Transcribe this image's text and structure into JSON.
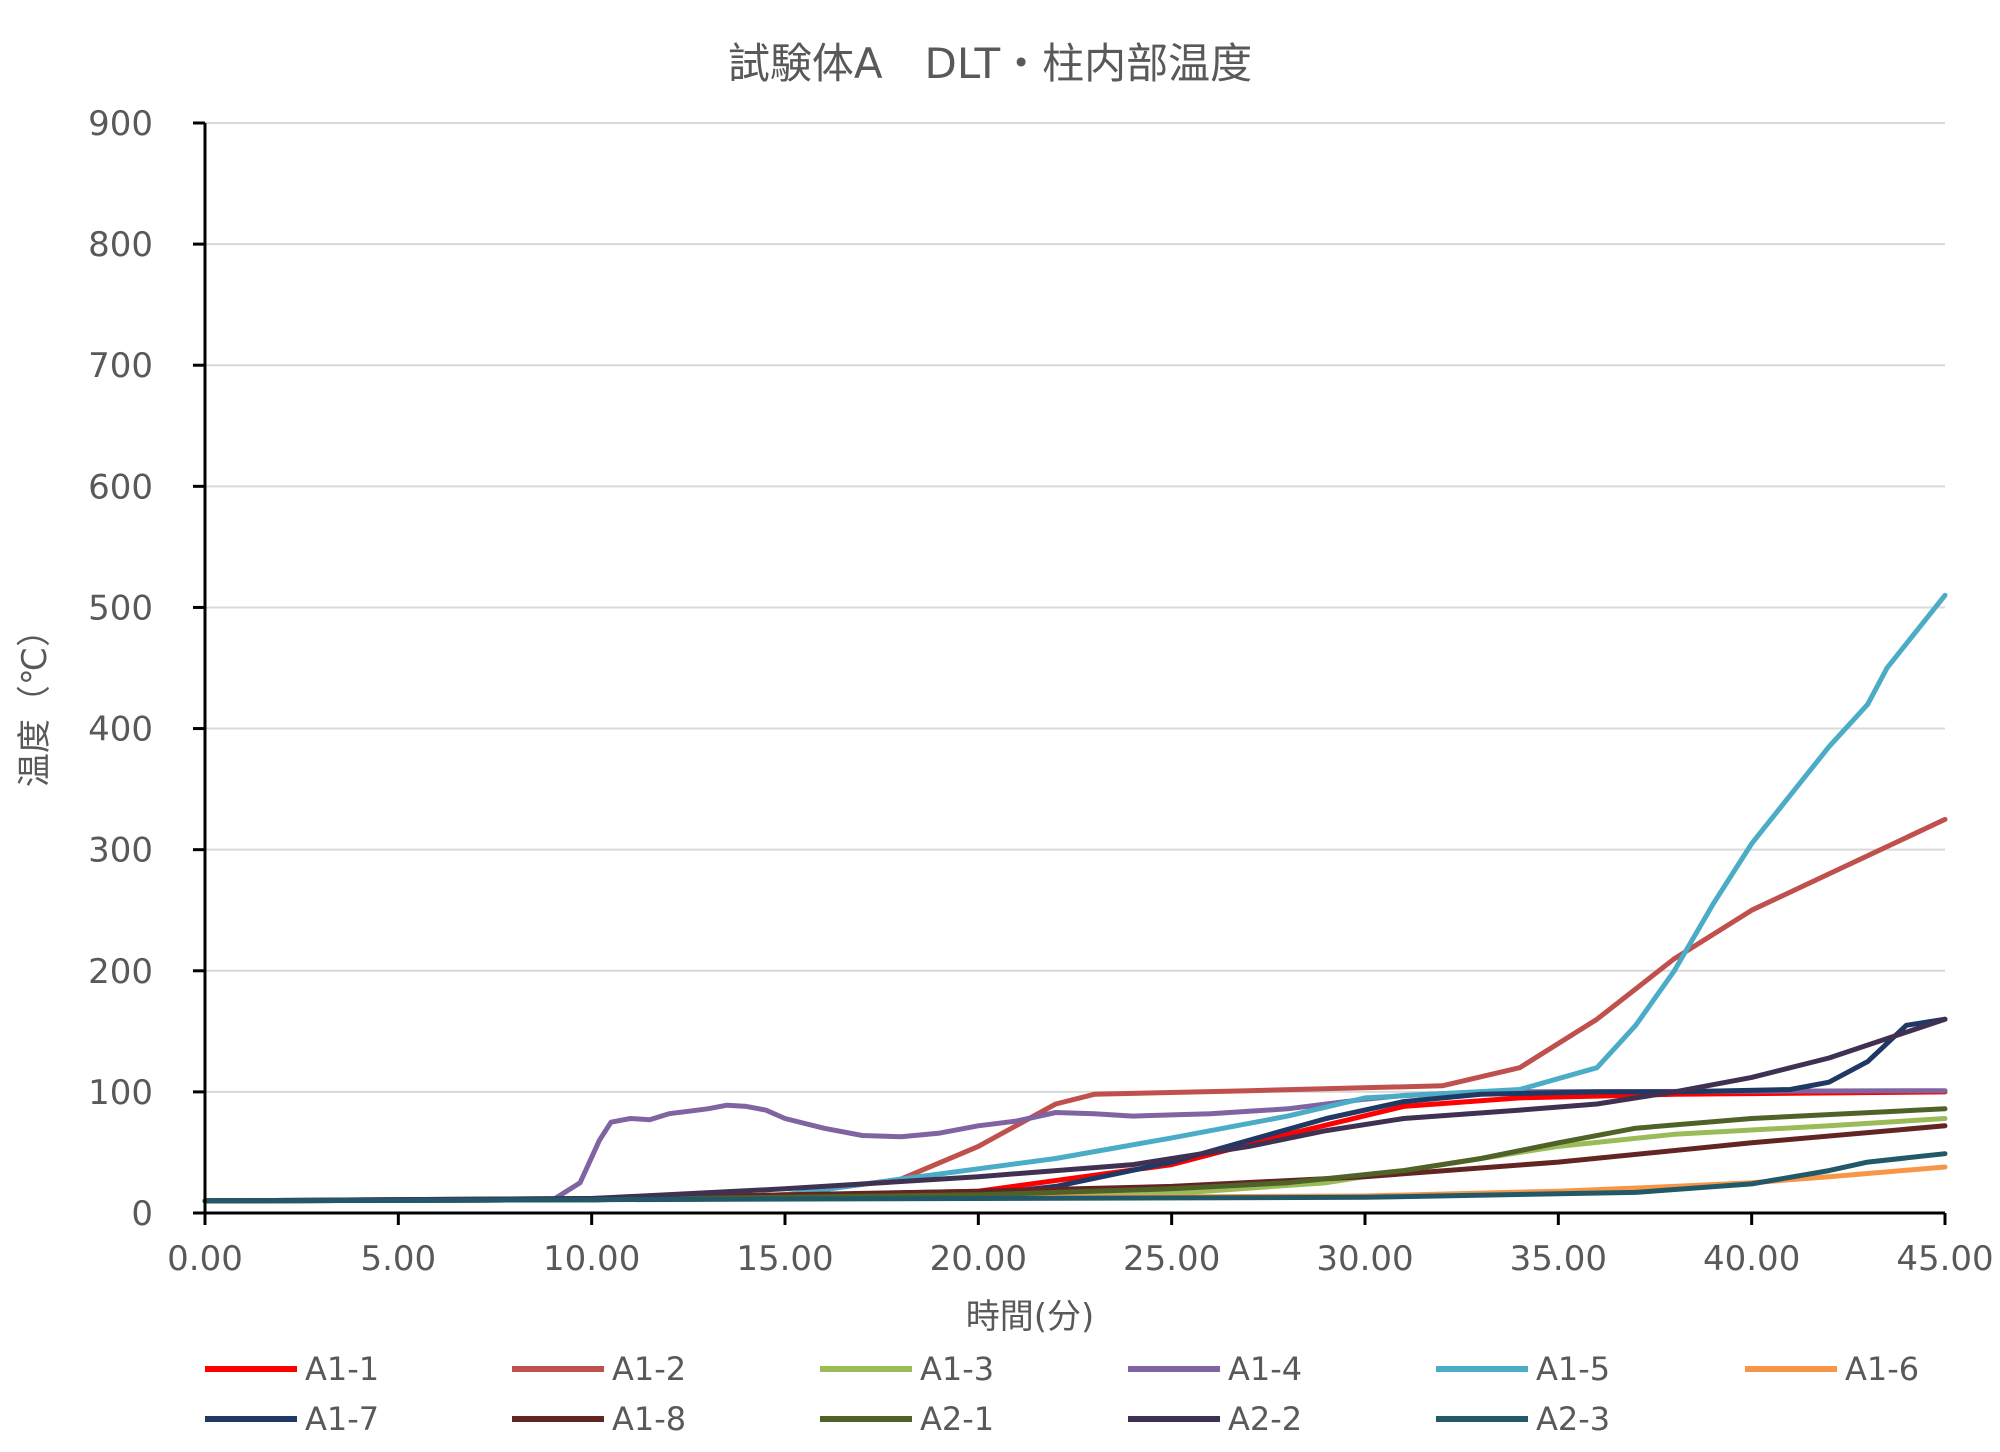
{
  "chart_data": {
    "type": "line",
    "title": "試験体A　DLT・柱内部温度",
    "xlabel": "時間(分)",
    "ylabel": "温度（℃）",
    "xlim": [
      0,
      45
    ],
    "ylim": [
      0,
      900
    ],
    "x_ticks": [
      "0.00",
      "5.00",
      "10.00",
      "15.00",
      "20.00",
      "25.00",
      "30.00",
      "35.00",
      "40.00",
      "45.00"
    ],
    "y_ticks": [
      "0",
      "100",
      "200",
      "300",
      "400",
      "500",
      "600",
      "700",
      "800",
      "900"
    ],
    "grid": true,
    "legend_position": "bottom",
    "series": [
      {
        "name": "A1-1",
        "color": "#ff0000",
        "points": [
          [
            0,
            10
          ],
          [
            10,
            11
          ],
          [
            20,
            18
          ],
          [
            25,
            40
          ],
          [
            28,
            65
          ],
          [
            31,
            88
          ],
          [
            34,
            95
          ],
          [
            38,
            98
          ],
          [
            45,
            100
          ]
        ]
      },
      {
        "name": "A1-2",
        "color": "#c0504d",
        "points": [
          [
            0,
            10
          ],
          [
            10,
            11
          ],
          [
            15,
            15
          ],
          [
            18,
            28
          ],
          [
            20,
            55
          ],
          [
            22,
            90
          ],
          [
            23,
            98
          ],
          [
            27,
            101
          ],
          [
            32,
            105
          ],
          [
            34,
            120
          ],
          [
            36,
            160
          ],
          [
            38,
            210
          ],
          [
            40,
            250
          ],
          [
            42,
            280
          ],
          [
            45,
            325
          ]
        ]
      },
      {
        "name": "A1-3",
        "color": "#9bbb59",
        "points": [
          [
            0,
            10
          ],
          [
            10,
            11
          ],
          [
            25,
            16
          ],
          [
            29,
            25
          ],
          [
            32,
            40
          ],
          [
            35,
            55
          ],
          [
            38,
            65
          ],
          [
            42,
            72
          ],
          [
            45,
            78
          ]
        ]
      },
      {
        "name": "A1-4",
        "color": "#8064a2",
        "points": [
          [
            0,
            10
          ],
          [
            9,
            11
          ],
          [
            9.7,
            25
          ],
          [
            10.2,
            60
          ],
          [
            10.5,
            75
          ],
          [
            11,
            78
          ],
          [
            11.5,
            77
          ],
          [
            12,
            82
          ],
          [
            12.5,
            84
          ],
          [
            13,
            86
          ],
          [
            13.5,
            89
          ],
          [
            14,
            88
          ],
          [
            14.5,
            85
          ],
          [
            15,
            78
          ],
          [
            16,
            70
          ],
          [
            17,
            64
          ],
          [
            18,
            63
          ],
          [
            19,
            66
          ],
          [
            20,
            72
          ],
          [
            21,
            76
          ],
          [
            22,
            83
          ],
          [
            23,
            82
          ],
          [
            24,
            80
          ],
          [
            25,
            81
          ],
          [
            26,
            82
          ],
          [
            27,
            84
          ],
          [
            28,
            86
          ],
          [
            29,
            90
          ],
          [
            30,
            94
          ],
          [
            31,
            97
          ],
          [
            33,
            100
          ],
          [
            45,
            101
          ]
        ]
      },
      {
        "name": "A1-5",
        "color": "#4bacc6",
        "points": [
          [
            0,
            10
          ],
          [
            10,
            11
          ],
          [
            15,
            15
          ],
          [
            18,
            28
          ],
          [
            22,
            45
          ],
          [
            25,
            62
          ],
          [
            28,
            80
          ],
          [
            30,
            95
          ],
          [
            34,
            102
          ],
          [
            36,
            120
          ],
          [
            37,
            155
          ],
          [
            38,
            200
          ],
          [
            39,
            255
          ],
          [
            40,
            305
          ],
          [
            41,
            345
          ],
          [
            42,
            385
          ],
          [
            43,
            420
          ],
          [
            43.5,
            450
          ],
          [
            44,
            470
          ],
          [
            45,
            510
          ]
        ]
      },
      {
        "name": "A1-6",
        "color": "#f79646",
        "points": [
          [
            0,
            10
          ],
          [
            30,
            14
          ],
          [
            35,
            18
          ],
          [
            38,
            22
          ],
          [
            40,
            25
          ],
          [
            42,
            30
          ],
          [
            45,
            38
          ]
        ]
      },
      {
        "name": "A1-7",
        "color": "#1f3864",
        "points": [
          [
            0,
            10
          ],
          [
            10,
            11
          ],
          [
            20,
            15
          ],
          [
            22,
            22
          ],
          [
            25,
            42
          ],
          [
            27,
            60
          ],
          [
            29,
            78
          ],
          [
            31,
            92
          ],
          [
            33,
            98
          ],
          [
            36,
            100
          ],
          [
            38,
            100
          ],
          [
            41,
            102
          ],
          [
            42,
            108
          ],
          [
            43,
            125
          ],
          [
            44,
            155
          ],
          [
            45,
            160
          ]
        ]
      },
      {
        "name": "A1-8",
        "color": "#632523",
        "points": [
          [
            0,
            10
          ],
          [
            10,
            12
          ],
          [
            20,
            18
          ],
          [
            25,
            22
          ],
          [
            30,
            30
          ],
          [
            35,
            42
          ],
          [
            40,
            58
          ],
          [
            45,
            72
          ]
        ]
      },
      {
        "name": "A2-1",
        "color": "#4f6228",
        "points": [
          [
            0,
            10
          ],
          [
            10,
            11
          ],
          [
            20,
            15
          ],
          [
            25,
            20
          ],
          [
            28,
            25
          ],
          [
            31,
            35
          ],
          [
            33,
            45
          ],
          [
            35,
            58
          ],
          [
            37,
            70
          ],
          [
            40,
            78
          ],
          [
            45,
            86
          ]
        ]
      },
      {
        "name": "A2-2",
        "color": "#403152",
        "points": [
          [
            0,
            10
          ],
          [
            10,
            12
          ],
          [
            15,
            20
          ],
          [
            20,
            30
          ],
          [
            24,
            40
          ],
          [
            27,
            55
          ],
          [
            29,
            68
          ],
          [
            31,
            78
          ],
          [
            34,
            85
          ],
          [
            36,
            90
          ],
          [
            37,
            95
          ],
          [
            38,
            100
          ],
          [
            40,
            112
          ],
          [
            42,
            128
          ],
          [
            45,
            160
          ]
        ]
      },
      {
        "name": "A2-3",
        "color": "#215968",
        "points": [
          [
            0,
            10
          ],
          [
            30,
            13
          ],
          [
            37,
            17
          ],
          [
            40,
            24
          ],
          [
            42,
            35
          ],
          [
            43,
            42
          ],
          [
            45,
            49
          ]
        ]
      }
    ]
  }
}
